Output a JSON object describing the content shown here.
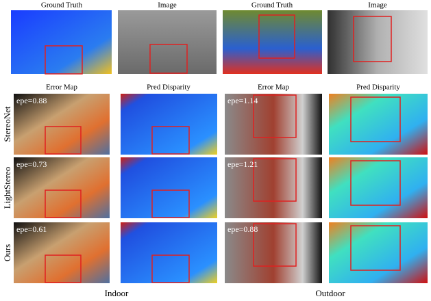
{
  "top_row": {
    "labels": [
      "Ground Truth",
      "Image",
      "Ground Truth",
      "Image"
    ]
  },
  "headers": [
    "Error Map",
    "Pred Disparity",
    "Error Map",
    "Pred Disparity"
  ],
  "rows": [
    {
      "label": "StereoNet",
      "epe": [
        "epe=0.88",
        "epe=1.14"
      ]
    },
    {
      "label": "LightStereo",
      "epe": [
        "epe=0.73",
        "epe=1.21"
      ]
    },
    {
      "label": "Ours",
      "epe": [
        "epe=0.61",
        "epe=0.88"
      ]
    }
  ],
  "footer": [
    "Indoor",
    "Outdoor"
  ]
}
